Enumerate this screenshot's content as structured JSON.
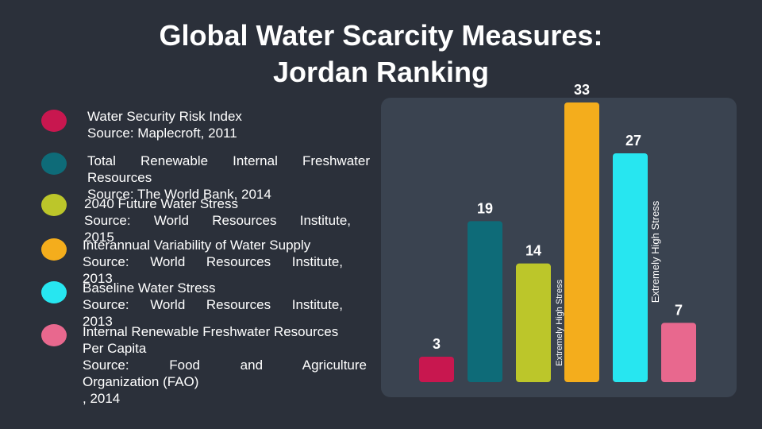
{
  "title": {
    "line1": "Global Water Scarcity Measures:",
    "line2": "Jordan Ranking"
  },
  "legend": [
    {
      "color": "#c8174f",
      "lines": [
        "Water Security Risk Index",
        "Source: Maplecroft, 2011"
      ]
    },
    {
      "color": "#0e6b78",
      "lines": [
        "Total Renewable Internal Freshwater",
        "Resources",
        "Source: The World Bank, 2014"
      ]
    },
    {
      "color": "#bcc62a",
      "lines": [
        "2040 Future Water Stress",
        "Source: World Resources Institute,",
        "2015"
      ]
    },
    {
      "color": "#f4ad1c",
      "lines": [
        "Interannual Variability of Water Supply",
        "Source: World Resources Institute,",
        "2013"
      ]
    },
    {
      "color": "#27e6f0",
      "lines": [
        "Baseline Water Stress",
        "Source: World Resources Institute,",
        "2013"
      ]
    },
    {
      "color": "#e8688e",
      "lines": [
        "Internal Renewable Freshwater Resources",
        "Per Capita",
        "Source: Food and Agriculture",
        "Organization (FAO)",
        ", 2014"
      ]
    }
  ],
  "chart_data": {
    "type": "bar",
    "categories": [
      "Water Security Risk Index",
      "Total Renewable Internal Freshwater Resources",
      "2040 Future Water Stress",
      "Interannual Variability of Water Supply",
      "Baseline Water Stress",
      "Internal Renewable Freshwater Resources Per Capita"
    ],
    "values": [
      3,
      19,
      14,
      33,
      27,
      7
    ],
    "colors": [
      "#c8174f",
      "#0e6b78",
      "#bcc62a",
      "#f4ad1c",
      "#27e6f0",
      "#e8688e"
    ],
    "ylim": [
      0,
      36
    ],
    "annotations": [
      {
        "category_index": 2,
        "text": "Extremely High Stress"
      },
      {
        "category_index": 4,
        "text": "Extremely High Stress"
      }
    ]
  }
}
